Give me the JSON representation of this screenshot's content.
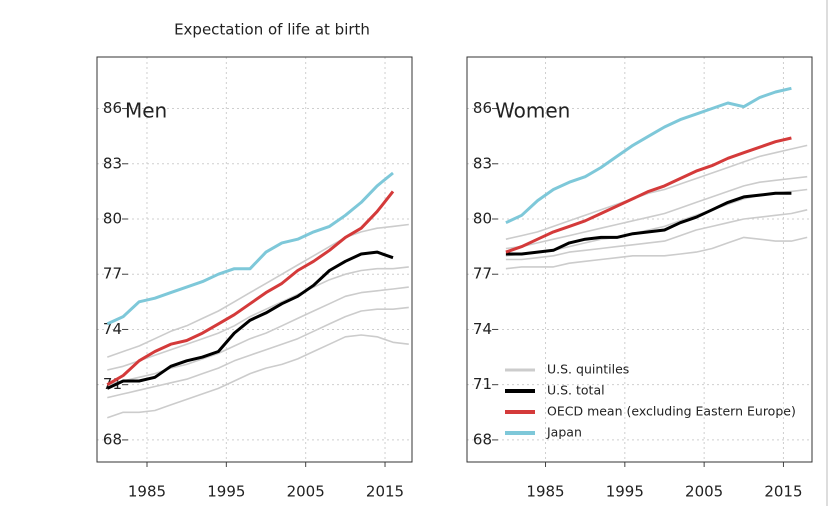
{
  "chart_data": [
    {
      "type": "line",
      "title": "Expectation of life at birth",
      "label": "Men",
      "x": [
        1980,
        1982,
        1984,
        1986,
        1988,
        1990,
        1992,
        1994,
        1996,
        1998,
        2000,
        2002,
        2004,
        2006,
        2008,
        2010,
        2012,
        2014,
        2016,
        2018
      ],
      "xlim": [
        1978.7,
        2018.4
      ],
      "xticks": [
        1985,
        1995,
        2005,
        2015
      ],
      "ylim": [
        66.8,
        88.8
      ],
      "yticks": [
        68,
        71,
        74,
        77,
        80,
        83,
        86
      ],
      "grid": true,
      "series": [
        {
          "color": "#cccccc",
          "values": [
            72.5,
            72.8,
            73.1,
            73.5,
            73.9,
            74.2,
            74.6,
            75.0,
            75.5,
            76.0,
            76.5,
            77.0,
            77.5,
            78.0,
            78.5,
            79.0,
            79.3,
            79.5,
            79.6,
            79.7
          ]
        },
        {
          "color": "#cccccc",
          "values": [
            71.8,
            72.0,
            72.3,
            72.6,
            72.9,
            73.2,
            73.5,
            73.8,
            74.2,
            74.7,
            75.1,
            75.5,
            75.9,
            76.3,
            76.7,
            77.0,
            77.2,
            77.3,
            77.3,
            77.4
          ]
        },
        {
          "color": "#cccccc",
          "values": [
            71.0,
            71.2,
            71.4,
            71.6,
            71.9,
            72.1,
            72.4,
            72.7,
            73.1,
            73.5,
            73.8,
            74.2,
            74.6,
            75.0,
            75.4,
            75.8,
            76.0,
            76.1,
            76.2,
            76.3
          ]
        },
        {
          "color": "#cccccc",
          "values": [
            70.3,
            70.5,
            70.7,
            70.9,
            71.1,
            71.3,
            71.6,
            71.9,
            72.3,
            72.6,
            72.9,
            73.2,
            73.5,
            73.9,
            74.3,
            74.7,
            75.0,
            75.1,
            75.1,
            75.2
          ]
        },
        {
          "color": "#cccccc",
          "values": [
            69.2,
            69.5,
            69.5,
            69.6,
            69.9,
            70.2,
            70.5,
            70.8,
            71.2,
            71.6,
            71.9,
            72.1,
            72.4,
            72.8,
            73.2,
            73.6,
            73.7,
            73.6,
            73.3,
            73.2
          ]
        },
        {
          "color": "#000000",
          "values": [
            70.8,
            71.2,
            71.2,
            71.4,
            72.0,
            72.3,
            72.5,
            72.8,
            73.8,
            74.5,
            74.9,
            75.4,
            75.8,
            76.4,
            77.2,
            77.7,
            78.1,
            78.2,
            77.9,
            null
          ]
        },
        {
          "color": "#d43a3a",
          "values": [
            71.0,
            71.5,
            72.3,
            72.8,
            73.2,
            73.4,
            73.8,
            74.3,
            74.8,
            75.4,
            76.0,
            76.5,
            77.2,
            77.7,
            78.3,
            79.0,
            79.5,
            80.4,
            81.5,
            null
          ]
        },
        {
          "color": "#7ec8d9",
          "values": [
            74.3,
            74.7,
            75.5,
            75.7,
            76.0,
            76.3,
            76.6,
            77.0,
            77.3,
            77.3,
            78.2,
            78.7,
            78.9,
            79.3,
            79.6,
            80.2,
            80.9,
            81.8,
            82.5,
            null
          ]
        }
      ]
    },
    {
      "type": "line",
      "label": "Women",
      "x": [
        1980,
        1982,
        1984,
        1986,
        1988,
        1990,
        1992,
        1994,
        1996,
        1998,
        2000,
        2002,
        2004,
        2006,
        2008,
        2010,
        2012,
        2014,
        2016,
        2018
      ],
      "xlim": [
        1975.1,
        2018.6
      ],
      "xticks": [
        1985,
        1995,
        2005,
        2015
      ],
      "ylim": [
        66.8,
        88.8
      ],
      "yticks": [
        68,
        71,
        74,
        77,
        80,
        83,
        86
      ],
      "grid": true,
      "series": [
        {
          "name": "U.S. quintiles",
          "color": "#cccccc",
          "values": [
            78.9,
            79.1,
            79.3,
            79.6,
            79.9,
            80.2,
            80.5,
            80.8,
            81.1,
            81.4,
            81.6,
            81.9,
            82.2,
            82.5,
            82.8,
            83.1,
            83.4,
            83.6,
            83.8,
            84.0
          ]
        },
        {
          "color": "#cccccc",
          "values": [
            78.4,
            78.5,
            78.7,
            78.9,
            79.1,
            79.3,
            79.5,
            79.7,
            79.9,
            80.1,
            80.3,
            80.6,
            80.9,
            81.2,
            81.5,
            81.8,
            82.0,
            82.1,
            82.2,
            82.3
          ]
        },
        {
          "color": "#cccccc",
          "values": [
            78.0,
            78.1,
            78.2,
            78.3,
            78.5,
            78.7,
            78.9,
            79.0,
            79.2,
            79.4,
            79.6,
            79.9,
            80.2,
            80.5,
            80.8,
            81.1,
            81.3,
            81.4,
            81.5,
            81.6
          ]
        },
        {
          "color": "#cccccc",
          "values": [
            77.8,
            77.8,
            77.9,
            78.0,
            78.2,
            78.3,
            78.4,
            78.5,
            78.6,
            78.7,
            78.8,
            79.1,
            79.4,
            79.6,
            79.8,
            80.0,
            80.1,
            80.2,
            80.3,
            80.5
          ]
        },
        {
          "color": "#cccccc",
          "values": [
            77.3,
            77.4,
            77.4,
            77.4,
            77.6,
            77.7,
            77.8,
            77.9,
            78.0,
            78.0,
            78.0,
            78.1,
            78.2,
            78.4,
            78.7,
            79.0,
            78.9,
            78.8,
            78.8,
            79.0
          ]
        },
        {
          "name": "U.S. total",
          "color": "#000000",
          "values": [
            78.1,
            78.1,
            78.2,
            78.3,
            78.7,
            78.9,
            79.0,
            79.0,
            79.2,
            79.3,
            79.4,
            79.8,
            80.1,
            80.5,
            80.9,
            81.2,
            81.3,
            81.4,
            81.4,
            null
          ]
        },
        {
          "name": "OECD mean (excluding Eastern Europe)",
          "color": "#d43a3a",
          "values": [
            78.2,
            78.5,
            78.9,
            79.3,
            79.6,
            79.9,
            80.3,
            80.7,
            81.1,
            81.5,
            81.8,
            82.2,
            82.6,
            82.9,
            83.3,
            83.6,
            83.9,
            84.2,
            84.4,
            null
          ]
        },
        {
          "name": "Japan",
          "color": "#7ec8d9",
          "values": [
            79.8,
            80.2,
            81.0,
            81.6,
            82.0,
            82.3,
            82.8,
            83.4,
            84.0,
            84.5,
            85.0,
            85.4,
            85.7,
            86.0,
            86.3,
            86.1,
            86.6,
            86.9,
            87.1,
            null
          ]
        }
      ]
    }
  ]
}
